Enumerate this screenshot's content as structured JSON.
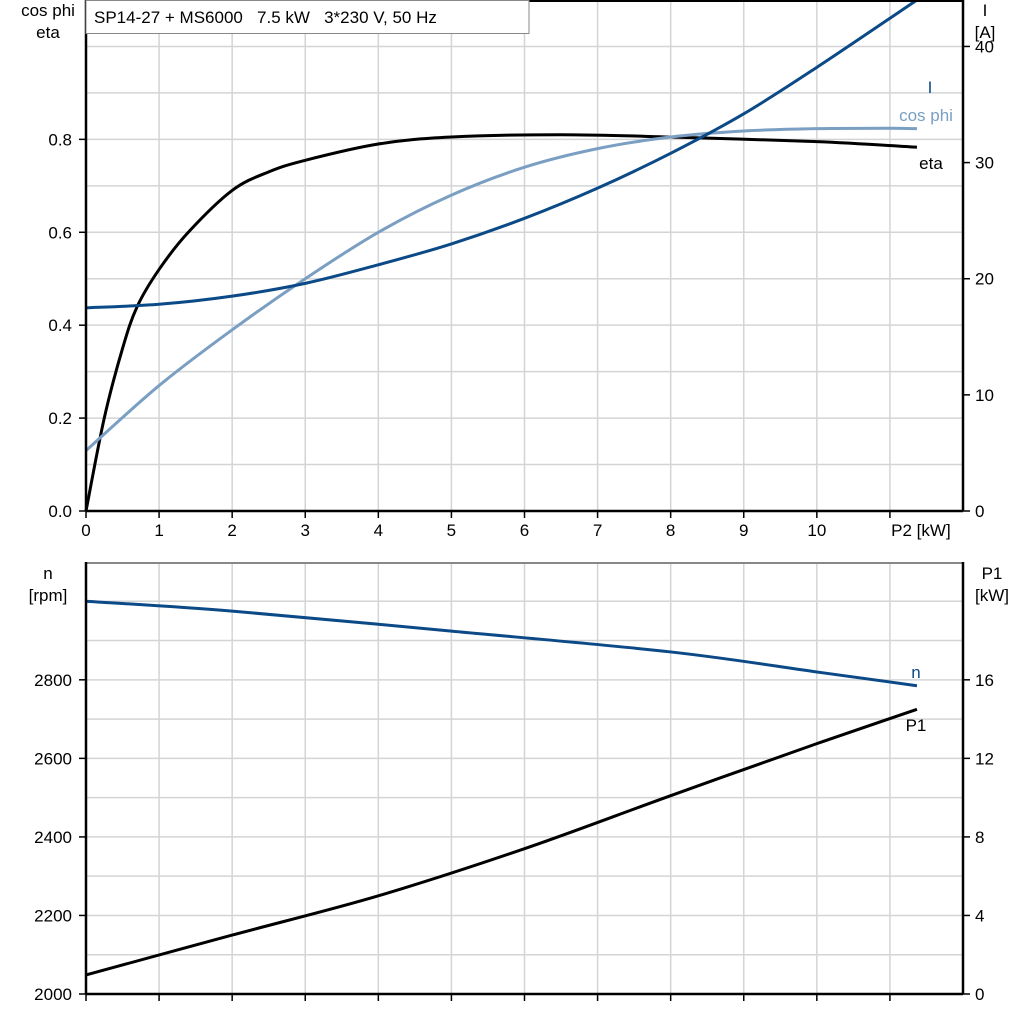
{
  "title": "SP14-27 + MS6000   7.5 kW   3*230 V, 50 Hz",
  "colors": {
    "eta": "#000000",
    "cos_phi": "#7a9fc2",
    "I": "#0b4a87",
    "n": "#0b4a87",
    "P1": "#000000",
    "grid": "#d2d4d6"
  },
  "chart_data": [
    {
      "type": "line",
      "x_label": "P2 [kW]",
      "x_ticks": [
        "0",
        "1",
        "2",
        "3",
        "4",
        "5",
        "6",
        "7",
        "8",
        "9",
        "10"
      ],
      "xlim": [
        0,
        12
      ],
      "grid": true,
      "left_axis": {
        "label_lines": [
          "cos phi",
          "eta"
        ],
        "ylim": [
          0,
          1.1
        ],
        "ticks": [
          "0.0",
          "0.2",
          "0.4",
          "0.6",
          "0.8"
        ]
      },
      "right_axis": {
        "label_lines": [
          "I",
          "[A]"
        ],
        "ylim": [
          0,
          44
        ],
        "ticks": [
          "0",
          "10",
          "20",
          "30",
          "40"
        ]
      },
      "series": [
        {
          "name": "eta",
          "axis": "left",
          "x": [
            0,
            0.25,
            0.5,
            0.7,
            1,
            1.4,
            2,
            2.5,
            3,
            4,
            5,
            6.5,
            8,
            10,
            11.37
          ],
          "y": [
            0,
            0.2,
            0.35,
            0.44,
            0.52,
            0.6,
            0.69,
            0.73,
            0.755,
            0.79,
            0.805,
            0.81,
            0.805,
            0.795,
            0.783
          ]
        },
        {
          "name": "cos phi",
          "axis": "left",
          "x": [
            0,
            1,
            2,
            3,
            4,
            5,
            6,
            7,
            8,
            9,
            10,
            11,
            11.37
          ],
          "y": [
            0.13,
            0.27,
            0.39,
            0.5,
            0.6,
            0.68,
            0.74,
            0.78,
            0.805,
            0.818,
            0.823,
            0.824,
            0.823
          ]
        },
        {
          "name": "I",
          "axis": "right",
          "x": [
            0,
            1,
            2,
            3,
            4,
            5,
            6,
            7,
            8,
            9,
            10,
            11.37
          ],
          "y": [
            17.5,
            17.8,
            18.5,
            19.6,
            21.2,
            23,
            25.2,
            27.8,
            30.8,
            34.2,
            38.2,
            44
          ]
        }
      ]
    },
    {
      "type": "line",
      "xlim": [
        0,
        12
      ],
      "grid": true,
      "left_axis": {
        "label_lines": [
          "n",
          "[rpm]"
        ],
        "ylim": [
          2000,
          3100
        ],
        "ticks": [
          "2000",
          "2200",
          "2400",
          "2600",
          "2800"
        ]
      },
      "right_axis": {
        "label_lines": [
          "P1",
          "[kW]"
        ],
        "ylim": [
          0,
          22
        ],
        "ticks": [
          "0",
          "4",
          "8",
          "12",
          "16"
        ]
      },
      "series": [
        {
          "name": "n",
          "axis": "left",
          "x": [
            0,
            2,
            5,
            8,
            10,
            11.37
          ],
          "y": [
            3000,
            2975,
            2924,
            2871,
            2820,
            2785
          ]
        },
        {
          "name": "P1",
          "axis": "right",
          "x": [
            0,
            2,
            4,
            6,
            8,
            10,
            11.37
          ],
          "y": [
            0.97,
            3.0,
            5.0,
            7.4,
            10.1,
            12.75,
            14.5
          ]
        }
      ]
    }
  ]
}
